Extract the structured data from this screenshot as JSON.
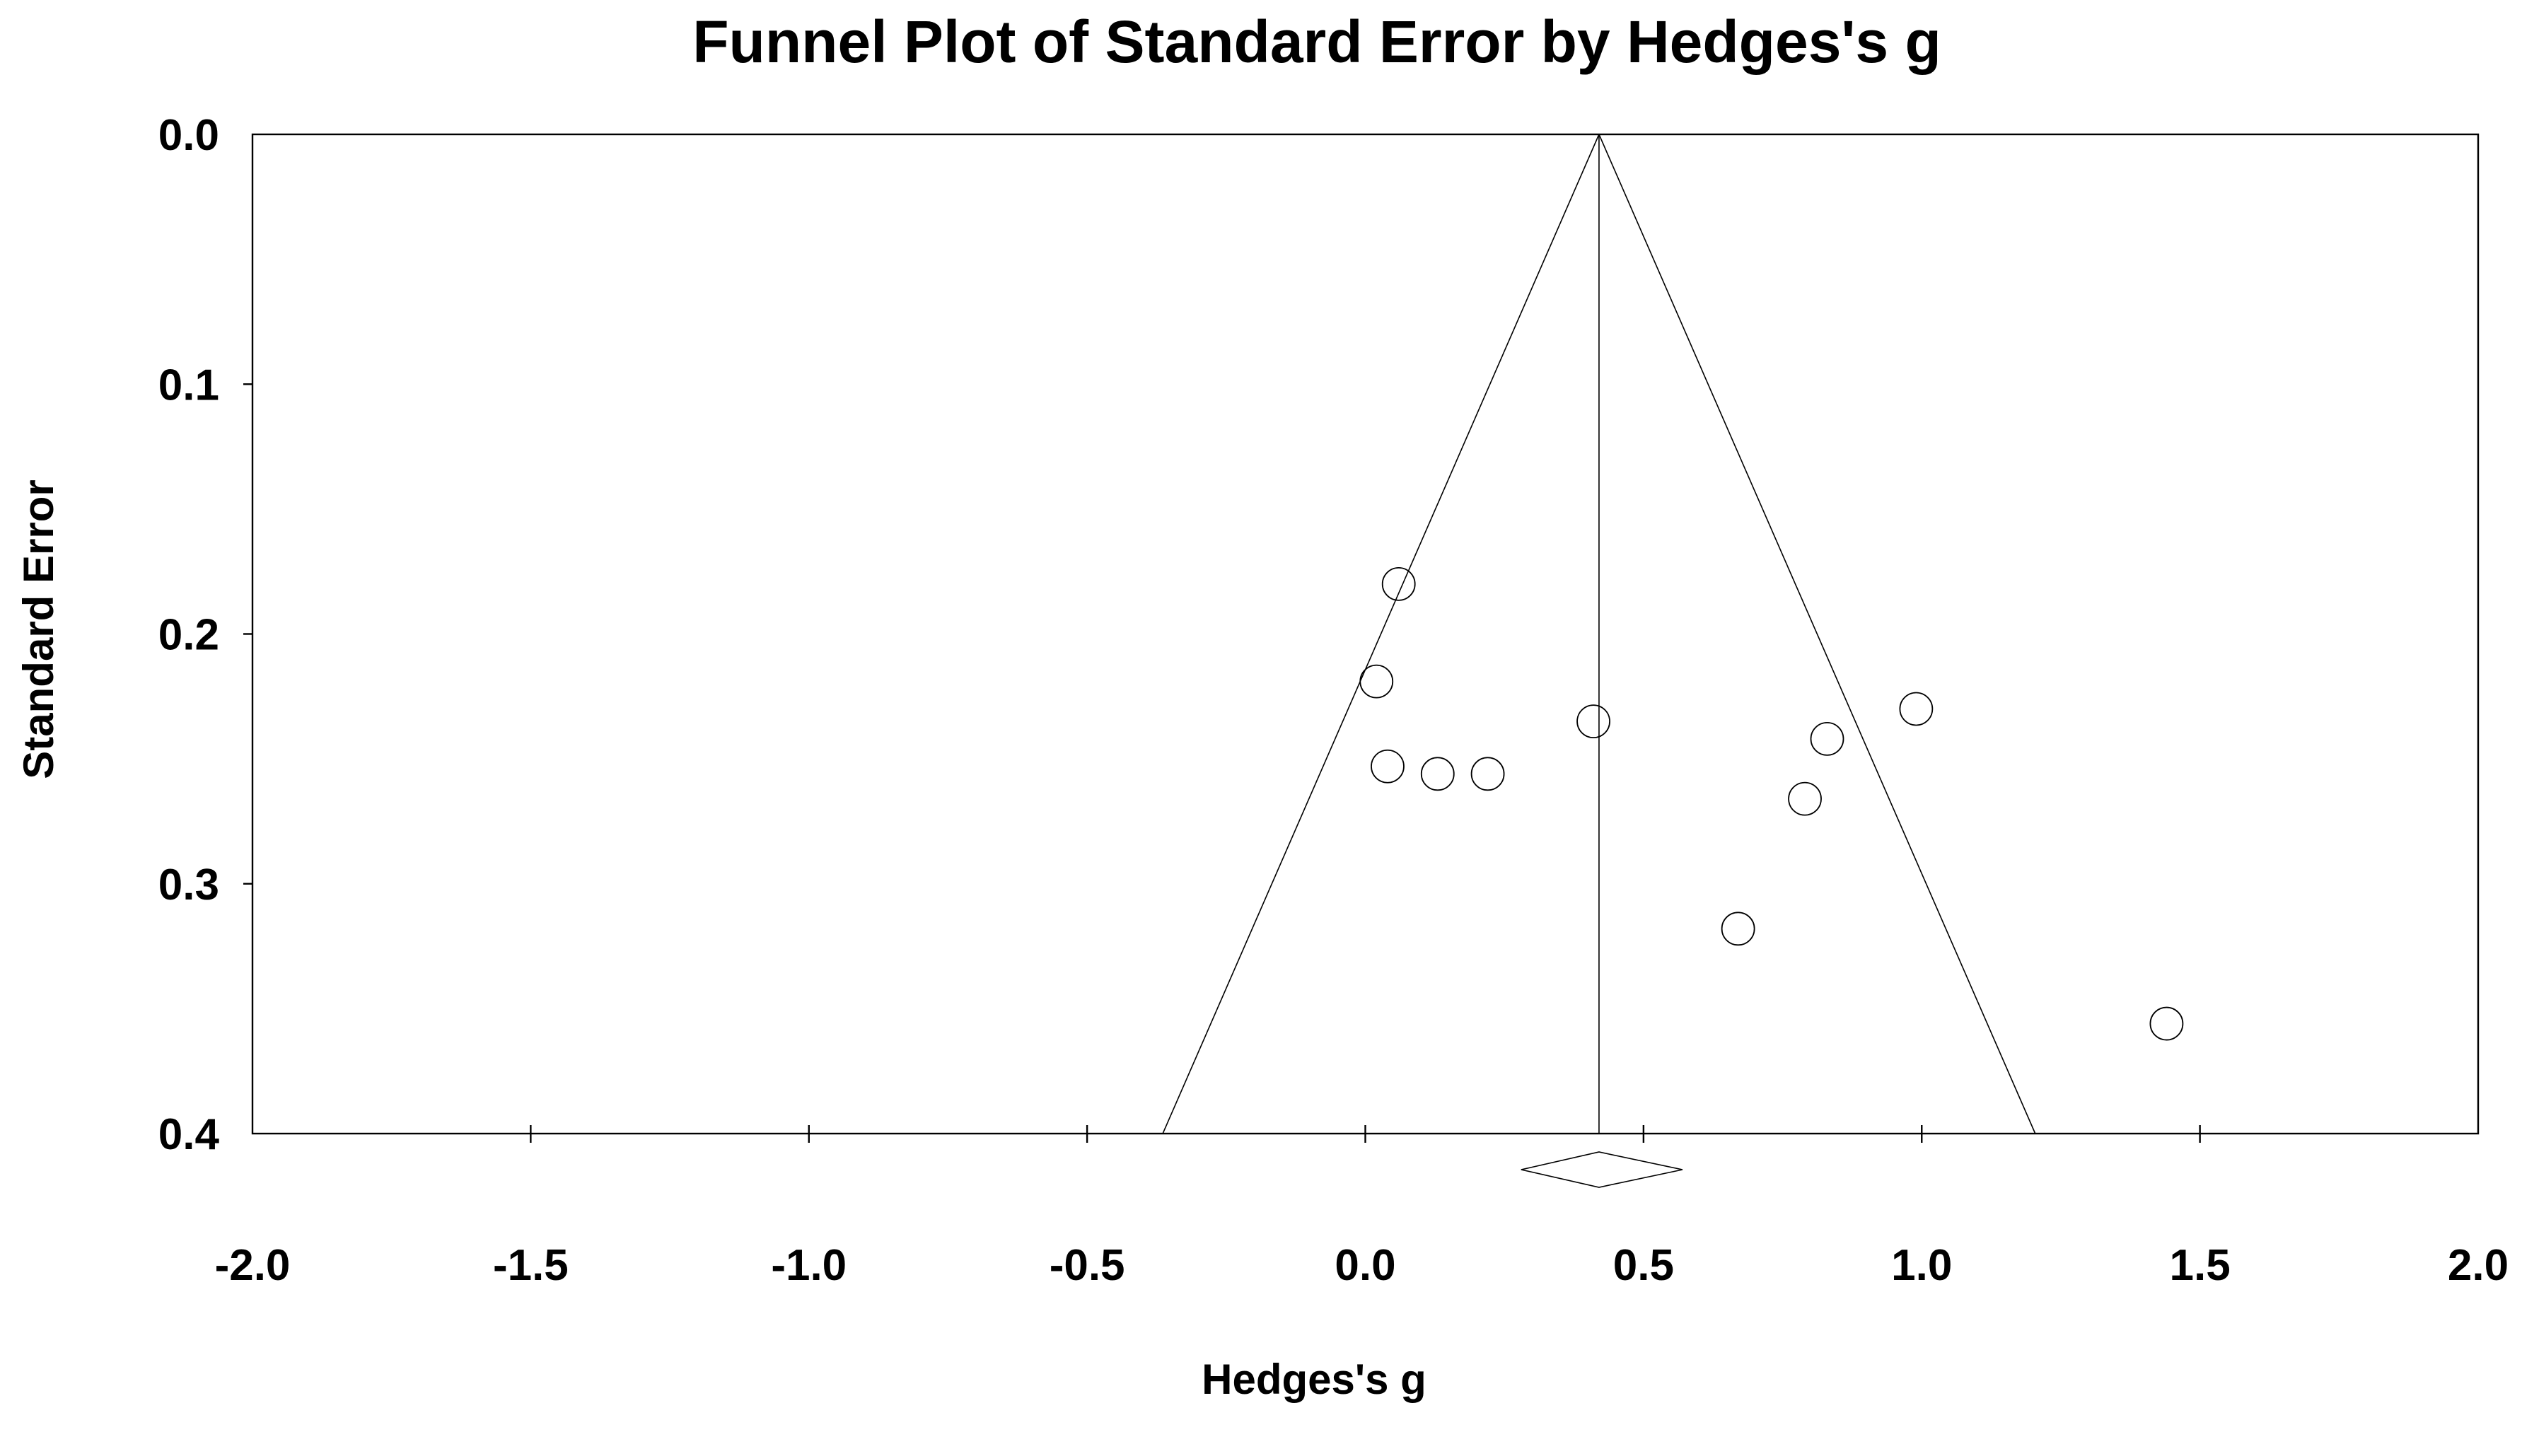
{
  "figure": {
    "background": "#ffffff",
    "foreground": "#000000"
  },
  "chart_data": {
    "type": "scatter",
    "chart_kind": "funnel-plot-meta-analysis",
    "title": "Funnel Plot of Standard Error by Hedges's g",
    "xlabel": "Hedges's g",
    "ylabel": "Standard Error",
    "xlim": [
      -2.0,
      2.0
    ],
    "ylim": [
      0.0,
      0.4
    ],
    "y_axis_inverted_downward": true,
    "grid": false,
    "legend": false,
    "x_ticks": [
      {
        "v": -2.0,
        "label": "-2.0",
        "mark": false
      },
      {
        "v": -1.5,
        "label": "-1.5",
        "mark": true
      },
      {
        "v": -1.0,
        "label": "-1.0",
        "mark": true
      },
      {
        "v": -0.5,
        "label": "-0.5",
        "mark": true
      },
      {
        "v": 0.0,
        "label": "0.0",
        "mark": true
      },
      {
        "v": 0.5,
        "label": "0.5",
        "mark": true
      },
      {
        "v": 1.0,
        "label": "1.0",
        "mark": true
      },
      {
        "v": 1.5,
        "label": "1.5",
        "mark": true
      },
      {
        "v": 2.0,
        "label": "2.0",
        "mark": false
      }
    ],
    "y_ticks": [
      {
        "v": 0.0,
        "label": "0.0",
        "mark": false
      },
      {
        "v": 0.1,
        "label": "0.1",
        "mark": true
      },
      {
        "v": 0.2,
        "label": "0.2",
        "mark": true
      },
      {
        "v": 0.3,
        "label": "0.3",
        "mark": true
      },
      {
        "v": 0.4,
        "label": "0.4",
        "mark": false
      }
    ],
    "points": [
      {
        "g": 0.06,
        "se": 0.18
      },
      {
        "g": 0.02,
        "se": 0.219
      },
      {
        "g": 0.04,
        "se": 0.253
      },
      {
        "g": 0.13,
        "se": 0.256
      },
      {
        "g": 0.22,
        "se": 0.256
      },
      {
        "g": 0.41,
        "se": 0.235
      },
      {
        "g": 0.67,
        "se": 0.318
      },
      {
        "g": 0.79,
        "se": 0.266
      },
      {
        "g": 0.83,
        "se": 0.242
      },
      {
        "g": 0.99,
        "se": 0.23
      },
      {
        "g": 1.44,
        "se": 0.356
      }
    ],
    "funnel": {
      "apex_g": 0.42,
      "apex_se": 0.0,
      "ci_multiplier": 1.96,
      "se_at_base": 0.4,
      "base_left_g": -0.364,
      "base_right_g": 1.204
    },
    "mean_effect_g": 0.42,
    "diamond": {
      "left_g": 0.28,
      "center_g": 0.42,
      "right_g": 0.57
    }
  }
}
